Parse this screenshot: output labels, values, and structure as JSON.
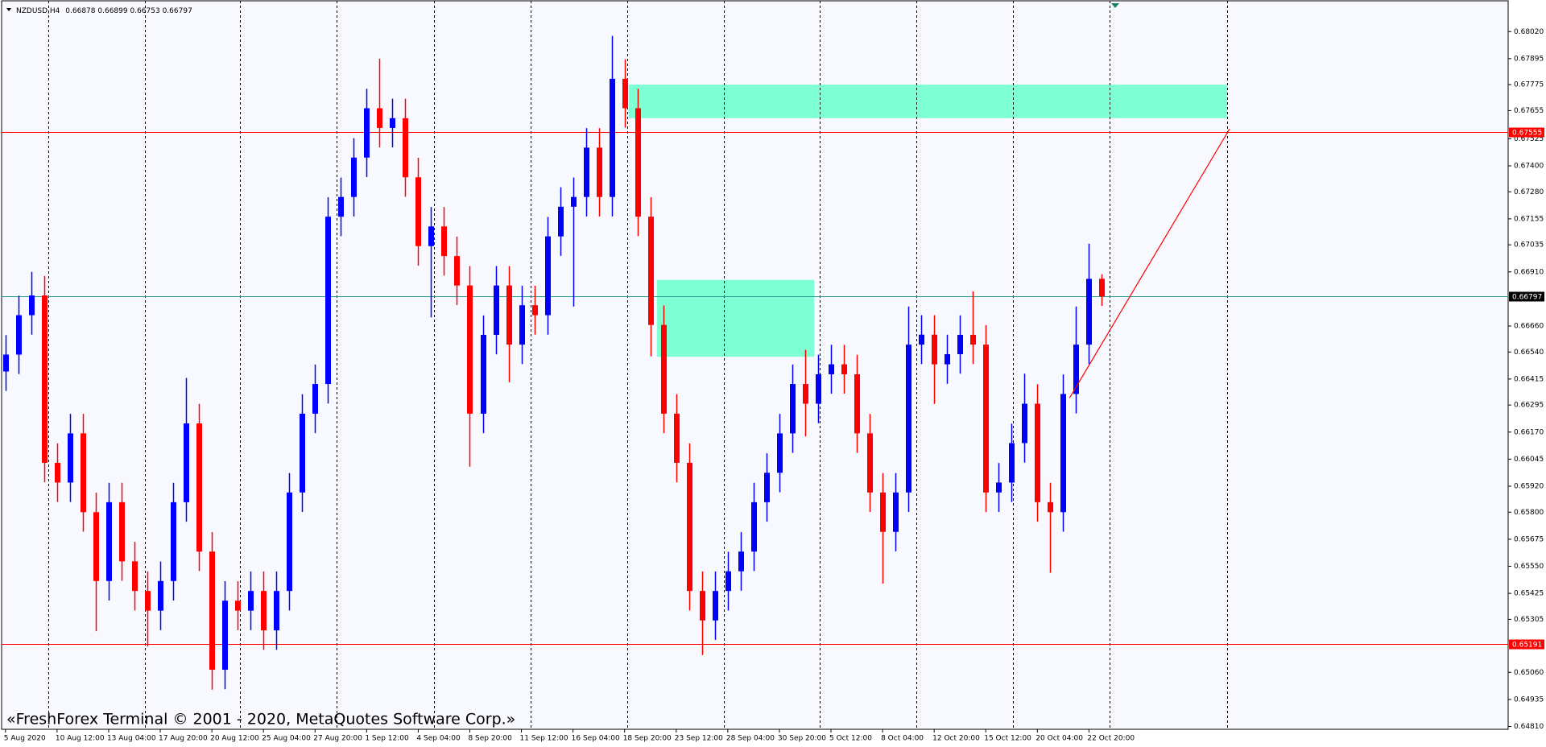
{
  "chart_data": {
    "type": "candlestick",
    "symbol": "NZDUSD,H4",
    "copyright": "«FreshForex Terminal © 2001 - 2020, MetaQuotes Software Corp.»",
    "categories": [
      "5 Aug 2020",
      null,
      null,
      null,
      "10 Aug 12:00",
      null,
      null,
      null,
      "13 Aug 04:00",
      null,
      null,
      null,
      "17 Aug 20:00",
      null,
      null,
      null,
      "20 Aug 12:00",
      null,
      null,
      null,
      "25 Aug 04:00",
      null,
      null,
      null,
      "27 Aug 20:00",
      null,
      null,
      null,
      "1 Sep 12:00",
      null,
      null,
      null,
      "4 Sep 04:00",
      null,
      null,
      null,
      "8 Sep 20:00",
      null,
      null,
      null,
      "11 Sep 12:00",
      null,
      null,
      null,
      "16 Sep 04:00",
      null,
      null,
      null,
      "18 Sep 20:00",
      null,
      null,
      null,
      "23 Sep 12:00",
      null,
      null,
      null,
      "28 Sep 04:00",
      null,
      null,
      null,
      "30 Sep 20:00",
      null,
      null,
      null,
      "5 Oct 12:00",
      null,
      null,
      null,
      "8 Oct 04:00",
      null,
      null,
      null,
      "12 Oct 20:00",
      null,
      null,
      null,
      "15 Oct 12:00",
      null,
      null,
      null,
      "20 Oct 04:00",
      null,
      null,
      null,
      "22 Oct 20:00",
      null
    ],
    "open": [
      0.6645,
      0.66528,
      0.6671,
      0.66801,
      0.66028,
      0.65937,
      0.66164,
      0.658,
      0.65482,
      0.65846,
      0.65573,
      0.65436,
      0.65345,
      0.65482,
      0.65846,
      0.6621,
      0.65618,
      0.65072,
      0.65391,
      0.65345,
      0.65436,
      0.65254,
      0.65436,
      0.65891,
      0.66255,
      0.66392,
      0.67165,
      0.67256,
      0.67438,
      0.67666,
      0.67575,
      0.6762,
      0.67347,
      0.67029,
      0.6712,
      0.66983,
      0.66847,
      0.66255,
      0.66619,
      0.66847,
      0.66574,
      0.66756,
      0.6671,
      0.67074,
      0.67211,
      0.67256,
      0.67484,
      0.67256,
      0.67802,
      0.67666,
      0.67165,
      0.66665,
      0.66255,
      0.66028,
      0.65436,
      0.653,
      0.65436,
      0.65527,
      0.65618,
      0.65846,
      0.65982,
      0.66164,
      0.66392,
      0.66301,
      0.66437,
      0.66483,
      0.66437,
      0.66164,
      0.65891,
      0.65709,
      0.65891,
      0.66574,
      0.6662,
      0.66483,
      0.6653,
      0.66619,
      0.66574,
      0.65891,
      0.65937,
      0.66119,
      0.66301,
      0.65846,
      0.658,
      0.66346,
      0.66574,
      0.66878
    ],
    "high": [
      0.66618,
      0.668,
      0.6691,
      0.66891,
      0.66118,
      0.66254,
      0.66254,
      0.6589,
      0.65936,
      0.65936,
      0.65663,
      0.65526,
      0.65572,
      0.65936,
      0.6642,
      0.663,
      0.65708,
      0.65481,
      0.65481,
      0.65526,
      0.65526,
      0.65526,
      0.65981,
      0.66345,
      0.66482,
      0.67255,
      0.67346,
      0.67528,
      0.67756,
      0.67895,
      0.6771,
      0.6771,
      0.67437,
      0.6721,
      0.6721,
      0.67073,
      0.66937,
      0.66709,
      0.66937,
      0.66937,
      0.66846,
      0.66846,
      0.67164,
      0.67301,
      0.67346,
      0.67574,
      0.67574,
      0.68,
      0.67892,
      0.67756,
      0.67255,
      0.66755,
      0.66345,
      0.66118,
      0.65526,
      0.65526,
      0.65617,
      0.65708,
      0.65936,
      0.66072,
      0.66254,
      0.66482,
      0.6655,
      0.66527,
      0.66573,
      0.66573,
      0.66527,
      0.66254,
      0.65981,
      0.65981,
      0.6675,
      0.6671,
      0.6671,
      0.6662,
      0.66709,
      0.6682,
      0.66664,
      0.66027,
      0.66209,
      0.6644,
      0.66391,
      0.65936,
      0.66436,
      0.6675,
      0.6704,
      0.66899
    ],
    "low": [
      0.6636,
      0.66438,
      0.6662,
      0.65938,
      0.65847,
      0.65847,
      0.6571,
      0.6525,
      0.65392,
      0.65483,
      0.65346,
      0.6518,
      0.65255,
      0.65392,
      0.65756,
      0.65528,
      0.6498,
      0.64982,
      0.65255,
      0.65255,
      0.65164,
      0.65164,
      0.65346,
      0.65801,
      0.66165,
      0.66302,
      0.67075,
      0.67166,
      0.67348,
      0.67485,
      0.67485,
      0.67257,
      0.66939,
      0.667,
      0.66893,
      0.66757,
      0.6601,
      0.66165,
      0.66529,
      0.664,
      0.66484,
      0.6662,
      0.6662,
      0.66984,
      0.6675,
      0.67166,
      0.67166,
      0.67166,
      0.67576,
      0.67075,
      0.6652,
      0.66165,
      0.65938,
      0.65346,
      0.6514,
      0.6521,
      0.65346,
      0.65437,
      0.65528,
      0.65756,
      0.65892,
      0.66074,
      0.6615,
      0.66211,
      0.66347,
      0.66347,
      0.66074,
      0.65801,
      0.6547,
      0.65619,
      0.65801,
      0.66484,
      0.663,
      0.66393,
      0.6644,
      0.66484,
      0.658,
      0.65801,
      0.65847,
      0.66029,
      0.65756,
      0.6552,
      0.6571,
      0.66256,
      0.66484,
      0.66753
    ],
    "close": [
      0.66528,
      0.6671,
      0.66801,
      0.66028,
      0.65937,
      0.66164,
      0.658,
      0.65482,
      0.65846,
      0.65573,
      0.65436,
      0.65345,
      0.65482,
      0.65846,
      0.6621,
      0.65618,
      0.65072,
      0.65391,
      0.65345,
      0.65436,
      0.65254,
      0.65436,
      0.65891,
      0.66255,
      0.66392,
      0.67165,
      0.67256,
      0.67438,
      0.67666,
      0.67575,
      0.6762,
      0.67347,
      0.67029,
      0.6712,
      0.66983,
      0.66847,
      0.66255,
      0.66619,
      0.66847,
      0.66574,
      0.66756,
      0.6671,
      0.67074,
      0.67211,
      0.67256,
      0.67484,
      0.67256,
      0.67802,
      0.67666,
      0.67165,
      0.66665,
      0.66255,
      0.66028,
      0.65436,
      0.653,
      0.65436,
      0.65527,
      0.65618,
      0.65846,
      0.65982,
      0.66164,
      0.66392,
      0.66301,
      0.66437,
      0.66483,
      0.66437,
      0.66164,
      0.65891,
      0.65709,
      0.65891,
      0.66574,
      0.6662,
      0.66483,
      0.6653,
      0.66619,
      0.66574,
      0.65891,
      0.65937,
      0.66119,
      0.66301,
      0.65846,
      0.658,
      0.66346,
      0.66574,
      0.66878,
      0.66797
    ],
    "up_color": "#0000ff",
    "down_color": "#ff0000",
    "xlim": [
      -0.3,
      116.5
    ],
    "xgrid": [
      3.3,
      10.8,
      18.2,
      25.7,
      33.2,
      40.7,
      48.2,
      55.7,
      63.1,
      70.6,
      78.1,
      85.6,
      94.7
    ],
    "ylim": [
      0.64797,
      0.68166
    ],
    "yticks": [
      {
        "value": 0.6802,
        "label": "0.68020"
      },
      0.67895,
      0.67775,
      0.67655,
      0.67525,
      {
        "value": 0.674,
        "label": "0.67400"
      },
      {
        "value": 0.6728,
        "label": "0.67280"
      },
      0.67155,
      0.67035,
      {
        "value": 0.6691,
        "label": "0.66910"
      },
      {
        "value": 0.6666,
        "label": "0.66660"
      },
      {
        "value": 0.6654,
        "label": "0.66540"
      },
      0.66415,
      0.66295,
      {
        "value": 0.6617,
        "label": "0.66170"
      },
      0.66045,
      {
        "value": 0.6592,
        "label": "0.65920"
      },
      {
        "value": 0.658,
        "label": "0.65800"
      },
      0.65675,
      {
        "value": 0.6555,
        "label": "0.65550"
      },
      0.65425,
      0.65305,
      {
        "value": 0.6506,
        "label": "0.65060"
      },
      0.64935,
      {
        "value": 0.6481,
        "label": "0.64810"
      }
    ],
    "levels": [
      {
        "value": 0.67555,
        "color": "#ff0000",
        "label_bg": "#ff0000"
      },
      {
        "value": 0.66797,
        "color": "#2e9c8c",
        "label_bg": "#000000"
      },
      {
        "value": 0.65191,
        "color": "#ff0000",
        "label_bg": "#ff0000"
      }
    ],
    "zones": [
      {
        "x": [
          48.3,
          94.7
        ],
        "y": [
          0.67775,
          0.6762
        ],
        "color": "#7fffd4"
      },
      {
        "x": [
          50.5,
          62.7
        ],
        "y": [
          0.66873,
          0.66518
        ],
        "color": "#7fffd4"
      }
    ],
    "trendline": {
      "x": [
        82.5,
        94.9
      ],
      "y": [
        0.66328,
        0.6757
      ],
      "color": "#ff0000"
    }
  }
}
